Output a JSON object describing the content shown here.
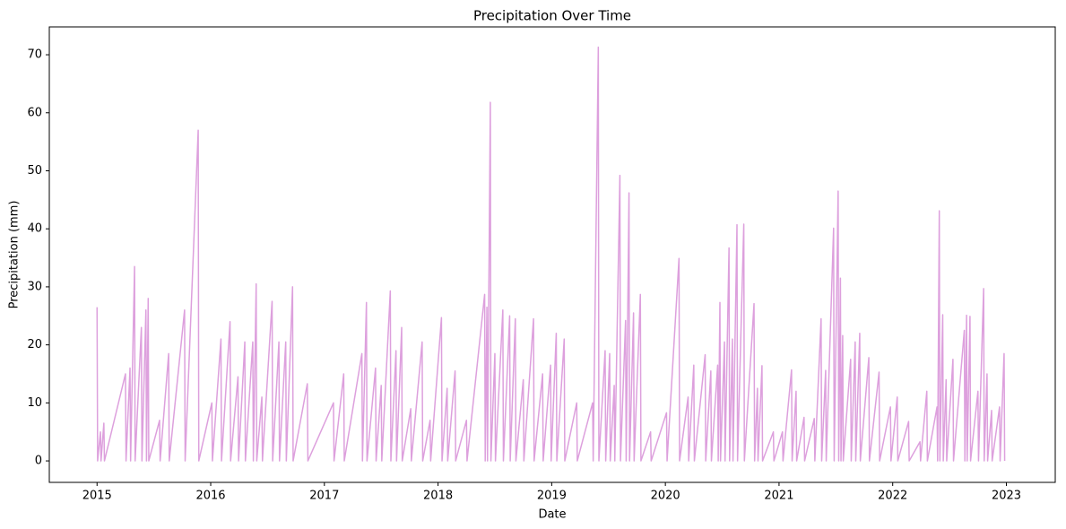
{
  "chart_data": {
    "type": "line",
    "title": "Precipitation Over Time",
    "x_label": "Date",
    "y_label": "Precipitation (mm)",
    "xlim": [
      2014.58,
      2023.43
    ],
    "xticks": [
      2015,
      2016,
      2017,
      2018,
      2019,
      2020,
      2021,
      2022,
      2023
    ],
    "ylim": [
      -3.7,
      74.8
    ],
    "yticks": [
      0,
      10,
      20,
      30,
      40,
      50,
      60,
      70
    ],
    "grid": false,
    "series": [
      {
        "color": "#dda0dd",
        "x": [
          2015.0,
          2015.005,
          2015.03,
          2015.035,
          2015.06,
          2015.065,
          2015.25,
          2015.255,
          2015.29,
          2015.295,
          2015.33,
          2015.335,
          2015.39,
          2015.395,
          2015.43,
          2015.435,
          2015.45,
          2015.455,
          2015.55,
          2015.555,
          2015.63,
          2015.635,
          2015.77,
          2015.775,
          2015.89,
          2015.895,
          2016.01,
          2016.015,
          2016.09,
          2016.095,
          2016.17,
          2016.175,
          2016.24,
          2016.245,
          2016.3,
          2016.305,
          2016.37,
          2016.375,
          2016.4,
          2016.405,
          2016.45,
          2016.455,
          2016.54,
          2016.545,
          2016.6,
          2016.605,
          2016.66,
          2016.665,
          2016.72,
          2016.725,
          2016.85,
          2016.855,
          2017.08,
          2017.085,
          2017.17,
          2017.175,
          2017.33,
          2017.335,
          2017.37,
          2017.375,
          2017.45,
          2017.455,
          2017.5,
          2017.505,
          2017.58,
          2017.585,
          2017.63,
          2017.635,
          2017.68,
          2017.685,
          2017.76,
          2017.765,
          2017.86,
          2017.865,
          2017.93,
          2017.935,
          2018.03,
          2018.035,
          2018.08,
          2018.085,
          2018.15,
          2018.155,
          2018.25,
          2018.255,
          2018.41,
          2018.415,
          2018.43,
          2018.435,
          2018.46,
          2018.465,
          2018.5,
          2018.505,
          2018.57,
          2018.575,
          2018.63,
          2018.635,
          2018.68,
          2018.685,
          2018.75,
          2018.755,
          2018.84,
          2018.845,
          2018.92,
          2018.925,
          2018.99,
          2018.995,
          2019.04,
          2019.045,
          2019.11,
          2019.115,
          2019.22,
          2019.225,
          2019.36,
          2019.365,
          2019.41,
          2019.415,
          2019.47,
          2019.475,
          2019.51,
          2019.515,
          2019.55,
          2019.555,
          2019.6,
          2019.605,
          2019.65,
          2019.655,
          2019.68,
          2019.685,
          2019.72,
          2019.725,
          2019.78,
          2019.785,
          2019.87,
          2019.875,
          2020.01,
          2020.015,
          2020.12,
          2020.125,
          2020.2,
          2020.205,
          2020.25,
          2020.255,
          2020.35,
          2020.355,
          2020.4,
          2020.405,
          2020.46,
          2020.465,
          2020.48,
          2020.485,
          2020.52,
          2020.525,
          2020.56,
          2020.565,
          2020.59,
          2020.595,
          2020.63,
          2020.635,
          2020.69,
          2020.695,
          2020.78,
          2020.785,
          2020.81,
          2020.815,
          2020.85,
          2020.855,
          2020.95,
          2020.955,
          2021.03,
          2021.035,
          2021.11,
          2021.115,
          2021.15,
          2021.155,
          2021.22,
          2021.225,
          2021.31,
          2021.315,
          2021.37,
          2021.375,
          2021.41,
          2021.415,
          2021.48,
          2021.485,
          2021.52,
          2021.525,
          2021.54,
          2021.545,
          2021.56,
          2021.565,
          2021.63,
          2021.635,
          2021.67,
          2021.675,
          2021.71,
          2021.715,
          2021.79,
          2021.795,
          2021.88,
          2021.885,
          2021.98,
          2021.985,
          2022.04,
          2022.045,
          2022.14,
          2022.145,
          2022.24,
          2022.245,
          2022.3,
          2022.305,
          2022.39,
          2022.395,
          2022.41,
          2022.415,
          2022.44,
          2022.445,
          2022.47,
          2022.475,
          2022.53,
          2022.535,
          2022.63,
          2022.635,
          2022.65,
          2022.655,
          2022.68,
          2022.685,
          2022.75,
          2022.755,
          2022.8,
          2022.805,
          2022.83,
          2022.835,
          2022.87,
          2022.875,
          2022.94,
          2022.945,
          2022.98,
          2022.985
        ],
        "values": [
          26.5,
          0,
          5,
          0,
          6.5,
          0,
          15,
          0,
          16,
          0,
          33.5,
          0,
          23,
          0,
          26,
          0,
          28,
          0,
          7,
          0,
          18.5,
          0,
          26,
          0,
          57,
          0,
          10,
          0,
          21,
          0,
          24,
          0,
          14.5,
          0,
          20.5,
          0,
          20.5,
          0,
          30.5,
          0,
          11,
          0,
          27.5,
          0,
          20.5,
          0,
          20.5,
          0,
          30,
          0,
          13.3,
          0,
          10,
          0,
          15,
          0,
          18.5,
          0,
          27.3,
          0,
          16,
          0,
          13,
          0,
          29.3,
          0,
          19,
          0,
          23,
          0,
          9,
          0,
          20.5,
          0,
          7,
          0,
          24.7,
          0,
          12.5,
          0,
          15.5,
          0,
          7,
          0,
          28.7,
          0,
          26.5,
          0,
          61.8,
          0,
          18.5,
          0,
          26,
          0,
          25,
          0,
          24.5,
          0,
          14,
          0,
          24.5,
          0,
          15,
          0,
          16.5,
          0,
          22,
          0,
          21,
          0,
          10,
          0,
          10,
          0,
          71.3,
          0,
          19,
          0,
          18.5,
          0,
          13,
          0,
          49.2,
          0,
          24.2,
          0,
          46.2,
          0,
          25.5,
          0,
          28.7,
          0,
          5,
          0,
          8.3,
          0,
          34.9,
          0,
          11,
          0,
          16.5,
          0,
          18.3,
          0,
          15.5,
          0,
          16.5,
          0,
          27.3,
          0,
          20.5,
          0,
          36.7,
          0,
          21,
          0,
          40.7,
          0,
          40.8,
          0,
          27.1,
          0,
          12.5,
          0,
          16.4,
          0,
          5,
          0,
          5,
          0,
          15.7,
          0,
          12,
          0,
          7.5,
          0,
          7.3,
          0,
          24.5,
          0,
          15.6,
          0,
          40.1,
          0,
          46.5,
          0,
          31.5,
          0,
          21.6,
          0,
          17.5,
          0,
          20.5,
          0,
          22,
          0,
          17.8,
          0,
          15.3,
          0,
          9.3,
          0,
          11,
          0,
          6.8,
          0,
          3.3,
          0,
          12,
          0,
          9.3,
          0,
          43.1,
          0,
          25.2,
          0,
          14,
          0,
          17.5,
          0,
          22.5,
          0,
          25.1,
          0,
          24.9,
          0,
          12,
          0,
          29.7,
          0,
          15,
          0,
          8.7,
          0,
          9.3,
          0,
          18.5,
          0
        ]
      }
    ]
  }
}
